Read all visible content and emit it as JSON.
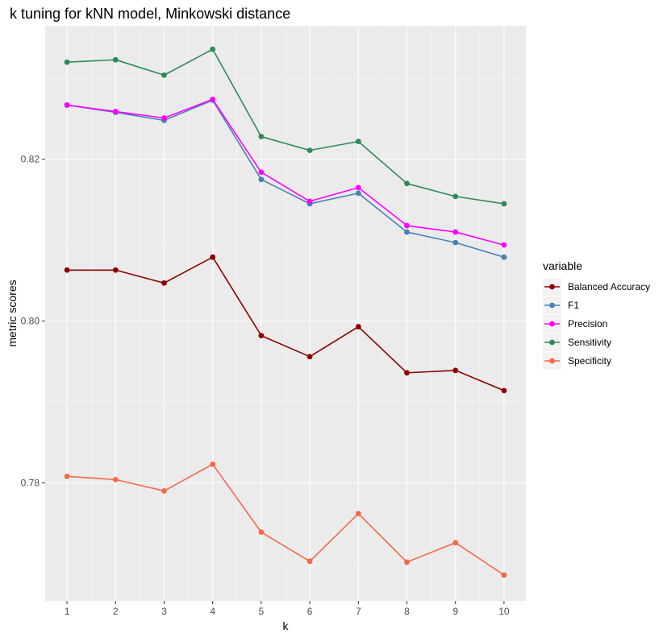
{
  "chart_data": {
    "type": "line",
    "title": "k tuning for kNN model, Minkowski distance",
    "xlabel": "k",
    "ylabel": "metric scores",
    "x": [
      1,
      2,
      3,
      4,
      5,
      6,
      7,
      8,
      9,
      10
    ],
    "xlim": [
      0.55,
      10.45
    ],
    "ylim": [
      0.7654,
      0.8365
    ],
    "yticks": [
      0.78,
      0.8,
      0.82
    ],
    "ytick_labels": [
      "0.78",
      "0.80",
      "0.82"
    ],
    "grid": true,
    "legend": {
      "title": "variable",
      "position": "right"
    },
    "series": [
      {
        "name": "Balanced Accuracy",
        "color": "#8b0000",
        "values": [
          0.8063,
          0.8063,
          0.8047,
          0.8079,
          0.7982,
          0.7956,
          0.7993,
          0.7936,
          0.7939,
          0.7914
        ]
      },
      {
        "name": "F1",
        "color": "#4682b4",
        "values": [
          0.8267,
          0.8258,
          0.8248,
          0.8273,
          0.8175,
          0.8145,
          0.8158,
          0.811,
          0.8097,
          0.8079
        ]
      },
      {
        "name": "Precision",
        "color": "#ff00ff",
        "values": [
          0.8267,
          0.8259,
          0.8251,
          0.8274,
          0.8184,
          0.8148,
          0.8165,
          0.8118,
          0.811,
          0.8094
        ]
      },
      {
        "name": "Sensitivity",
        "color": "#2e8b57",
        "values": [
          0.832,
          0.8323,
          0.8304,
          0.8336,
          0.8228,
          0.8211,
          0.8222,
          0.817,
          0.8154,
          0.8145
        ]
      },
      {
        "name": "Specificity",
        "color": "#f4694a",
        "values": [
          0.7808,
          0.7804,
          0.779,
          0.7823,
          0.7739,
          0.7703,
          0.7762,
          0.7702,
          0.7726,
          0.7686
        ]
      }
    ]
  }
}
